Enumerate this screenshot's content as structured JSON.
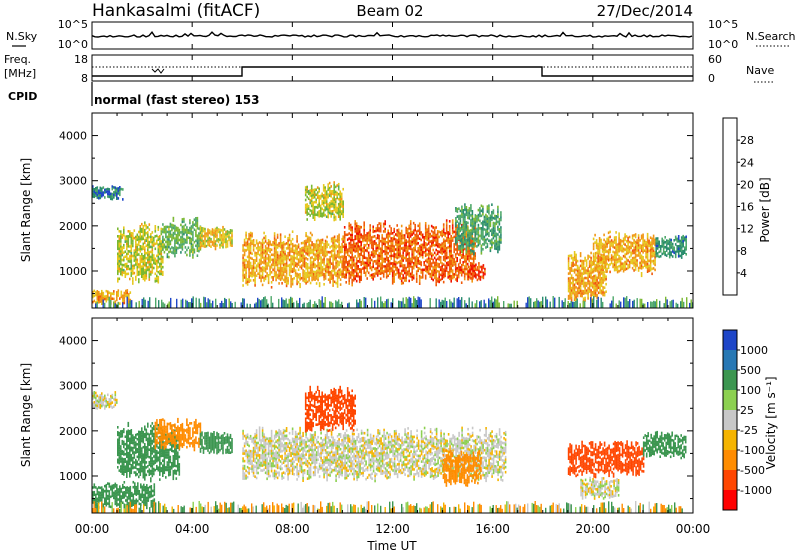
{
  "header": {
    "radar": "Hankasalmi (fitACF)",
    "beam": "Beam 02",
    "date": "27/Dec/2014"
  },
  "noise_panel": {
    "left_label": "N.Sky",
    "right_label": "N.Search",
    "left_ticks": [
      "10^5",
      "10^0"
    ],
    "right_ticks": [
      "10^5",
      "10^0"
    ]
  },
  "freq_panel": {
    "left_label_1": "Freq.",
    "left_label_2": "[MHz]",
    "right_label": "Nave",
    "left_ticks": [
      "18",
      "8"
    ],
    "right_ticks": [
      "60",
      "0"
    ],
    "cpid_label": "CPID",
    "mode_text": "normal (fast stereo) 153"
  },
  "time_axis": {
    "ticks": [
      "00:00",
      "04:00",
      "08:00",
      "12:00",
      "16:00",
      "20:00",
      "00:00"
    ],
    "label": "Time UT"
  },
  "colors": {
    "power": [
      "#1414ff",
      "#1e46c8",
      "#2a8c6e",
      "#4ea86a",
      "#7ab832",
      "#e6c81e",
      "#f09614",
      "#f05a0a",
      "#f01400"
    ],
    "velocity": [
      "#ff0000",
      "#ff4600",
      "#ff8c00",
      "#f5b400",
      "#c8c8c8",
      "#8cd050",
      "#3c9650",
      "#2878b4",
      "#1e46c8"
    ]
  },
  "chart_data": [
    {
      "type": "heatmap",
      "name": "power",
      "ylabel": "Slant Range [km]",
      "xlabel": "",
      "ylim": [
        180,
        4500
      ],
      "xlim_hours": [
        0,
        24
      ],
      "yticks": [
        "1000",
        "2000",
        "3000",
        "4000"
      ],
      "colorbar": {
        "label": "Power [dB]",
        "range": [
          0,
          32
        ],
        "ticks": [
          "4",
          "8",
          "12",
          "16",
          "20",
          "24",
          "28"
        ]
      },
      "regions": [
        {
          "t_start": 0.0,
          "t_end": 1.2,
          "r_min": 2600,
          "r_max": 2900,
          "value": 8
        },
        {
          "t_start": 0.0,
          "t_end": 1.5,
          "r_min": 250,
          "r_max": 600,
          "value": 22
        },
        {
          "t_start": 1.0,
          "t_end": 2.8,
          "r_min": 700,
          "r_max": 2100,
          "value": 18
        },
        {
          "t_start": 2.8,
          "t_end": 4.3,
          "r_min": 1300,
          "r_max": 2200,
          "value": 14
        },
        {
          "t_start": 4.3,
          "t_end": 5.6,
          "r_min": 1500,
          "r_max": 2000,
          "value": 20
        },
        {
          "t_start": 6.0,
          "t_end": 10.0,
          "r_min": 650,
          "r_max": 1900,
          "value": 22
        },
        {
          "t_start": 10.0,
          "t_end": 15.3,
          "r_min": 700,
          "r_max": 2150,
          "value": 26
        },
        {
          "t_start": 14.5,
          "t_end": 16.3,
          "r_min": 1400,
          "r_max": 2500,
          "value": 12
        },
        {
          "t_start": 8.5,
          "t_end": 10.0,
          "r_min": 2100,
          "r_max": 3000,
          "value": 18
        },
        {
          "t_start": 15.0,
          "t_end": 15.7,
          "r_min": 800,
          "r_max": 1200,
          "value": 28
        },
        {
          "t_start": 19.0,
          "t_end": 20.5,
          "r_min": 300,
          "r_max": 1500,
          "value": 22
        },
        {
          "t_start": 20.0,
          "t_end": 22.5,
          "r_min": 900,
          "r_max": 1900,
          "value": 22
        },
        {
          "t_start": 22.5,
          "t_end": 23.7,
          "r_min": 1300,
          "r_max": 1800,
          "value": 10
        }
      ]
    },
    {
      "type": "heatmap",
      "name": "velocity",
      "ylabel": "Slant Range [km]",
      "xlabel": "Time UT",
      "ylim": [
        180,
        4500
      ],
      "xlim_hours": [
        0,
        24
      ],
      "yticks": [
        "1000",
        "2000",
        "3000",
        "4000"
      ],
      "colorbar": {
        "label": "Velocity [m s⁻¹]",
        "ticks": [
          "1000",
          "500",
          "100",
          "25",
          "-25",
          "-100",
          "-500",
          "-1000"
        ]
      },
      "regions": [
        {
          "t_start": 0.0,
          "t_end": 1.0,
          "r_min": 2500,
          "r_max": 2900,
          "value": 0
        },
        {
          "t_start": 0.0,
          "t_end": 2.5,
          "r_min": 300,
          "r_max": 900,
          "value": 150
        },
        {
          "t_start": 1.0,
          "t_end": 3.5,
          "r_min": 900,
          "r_max": 2200,
          "value": 300
        },
        {
          "t_start": 2.5,
          "t_end": 4.3,
          "r_min": 1600,
          "r_max": 2300,
          "value": -150
        },
        {
          "t_start": 4.3,
          "t_end": 5.6,
          "r_min": 1500,
          "r_max": 2000,
          "value": 150
        },
        {
          "t_start": 6.0,
          "t_end": 16.5,
          "r_min": 900,
          "r_max": 2100,
          "value": 0
        },
        {
          "t_start": 8.5,
          "t_end": 10.5,
          "r_min": 2000,
          "r_max": 3000,
          "value": -700
        },
        {
          "t_start": 14.0,
          "t_end": 15.5,
          "r_min": 800,
          "r_max": 1600,
          "value": -150
        },
        {
          "t_start": 19.0,
          "t_end": 22.0,
          "r_min": 1000,
          "r_max": 1800,
          "value": -700
        },
        {
          "t_start": 19.5,
          "t_end": 21.0,
          "r_min": 500,
          "r_max": 1000,
          "value": 0
        },
        {
          "t_start": 22.0,
          "t_end": 23.7,
          "r_min": 1400,
          "r_max": 2000,
          "value": 300
        }
      ]
    }
  ]
}
